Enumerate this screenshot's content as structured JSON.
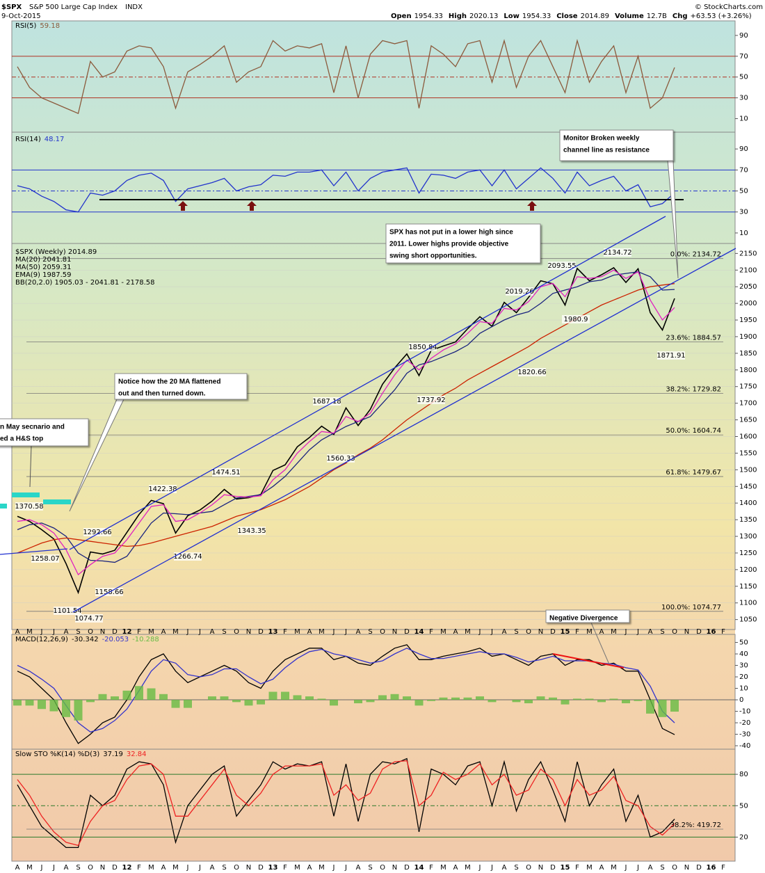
{
  "header": {
    "symbol": "$SPX",
    "name": "S&P 500 Large Cap Index",
    "exchange": "INDX",
    "date": "9-Oct-2015",
    "quote": [
      {
        "label": "Open",
        "value": "1954.33"
      },
      {
        "label": "High",
        "value": "2020.13"
      },
      {
        "label": "Low",
        "value": "1954.33"
      },
      {
        "label": "Close",
        "value": "2014.89"
      },
      {
        "label": "Volume",
        "value": "12.7B"
      },
      {
        "label": "Chg",
        "value": "+63.53 (+3.26%)"
      }
    ],
    "watermark": "© StockCharts.com"
  },
  "x_labels": [
    "A",
    "M",
    "J",
    "J",
    "A",
    "S",
    "O",
    "N",
    "D",
    "12",
    "F",
    "M",
    "A",
    "M",
    "J",
    "J",
    "A",
    "S",
    "O",
    "N",
    "D",
    "13",
    "F",
    "M",
    "A",
    "M",
    "J",
    "J",
    "A",
    "S",
    "O",
    "N",
    "D",
    "14",
    "F",
    "M",
    "A",
    "M",
    "J",
    "J",
    "A",
    "S",
    "O",
    "N",
    "D",
    "15",
    "F",
    "M",
    "A",
    "M",
    "J",
    "J",
    "A",
    "S",
    "O",
    "N",
    "D",
    "16",
    "F"
  ],
  "annotations": [
    {
      "lines": [
        "Monitor Broken weekly",
        "channel line as resistance"
      ]
    },
    {
      "lines": [
        "SPX has not put in a lower high since",
        "2011. Lower highs provide objective",
        "swing short opportunities."
      ]
    },
    {
      "lines": [
        "Notice how the 20 MA flattened",
        "out and then turned down."
      ]
    },
    {
      "lines": [
        "n May secnario and",
        "ed a H&S top"
      ]
    },
    {
      "lines": [
        "Negative Divergence"
      ]
    }
  ],
  "chart_data": [
    {
      "type": "line",
      "title": "RSI(5)",
      "ylim": [
        -3,
        104
      ],
      "yticks": [
        10,
        30,
        50,
        70,
        90
      ],
      "reference_lines": [
        30,
        50,
        70
      ],
      "series": [
        {
          "name": "59.18",
          "color": "#8b5a3c",
          "values": [
            60,
            40,
            30,
            25,
            20,
            15,
            65,
            50,
            55,
            75,
            80,
            78,
            60,
            20,
            55,
            62,
            70,
            80,
            45,
            55,
            60,
            85,
            75,
            80,
            78,
            82,
            35,
            80,
            30,
            72,
            85,
            82,
            85,
            20,
            80,
            72,
            60,
            82,
            85,
            45,
            85,
            40,
            70,
            85,
            60,
            35,
            85,
            45,
            65,
            80,
            35,
            70,
            20,
            30,
            59.18
          ]
        }
      ]
    },
    {
      "type": "line",
      "title": "RSI(14)",
      "ylim": [
        0,
        106
      ],
      "yticks": [
        10,
        30,
        50,
        70,
        90
      ],
      "reference_lines": [
        30,
        50,
        70
      ],
      "series": [
        {
          "name": "48.17",
          "color": "#2233cc",
          "values": [
            55,
            52,
            45,
            40,
            32,
            30,
            48,
            46,
            50,
            60,
            65,
            67,
            60,
            40,
            52,
            55,
            58,
            62,
            50,
            54,
            56,
            65,
            64,
            68,
            68,
            70,
            55,
            68,
            50,
            62,
            68,
            70,
            72,
            48,
            66,
            65,
            62,
            68,
            70,
            55,
            70,
            52,
            62,
            72,
            62,
            48,
            68,
            55,
            60,
            64,
            50,
            56,
            35,
            38,
            48.17
          ]
        }
      ]
    },
    {
      "type": "line",
      "ylim": [
        1020,
        2180
      ],
      "yticks": [
        1050,
        1100,
        1150,
        1200,
        1250,
        1300,
        1350,
        1400,
        1450,
        1500,
        1550,
        1600,
        1650,
        1700,
        1750,
        1800,
        1850,
        1900,
        1950,
        2000,
        2050,
        2100,
        2150
      ],
      "series": [
        {
          "name": "$SPX (Weekly) 2014.89",
          "color": "#000000",
          "values": [
            1360,
            1345,
            1320,
            1292,
            1218,
            1131,
            1253,
            1247,
            1258,
            1312,
            1366,
            1408,
            1398,
            1310,
            1362,
            1379,
            1406,
            1441,
            1412,
            1416,
            1426,
            1498,
            1515,
            1569,
            1597,
            1631,
            1606,
            1686,
            1633,
            1682,
            1757,
            1806,
            1848,
            1783,
            1859,
            1872,
            1884,
            1924,
            1960,
            1931,
            2003,
            1972,
            2018,
            2068,
            2059,
            1995,
            2105,
            2068,
            2086,
            2107,
            2063,
            2104,
            1972,
            1920,
            2014.89
          ]
        },
        {
          "name": "MA(20) 2041.81",
          "color": "#1a237e",
          "values": [
            1320,
            1335,
            1340,
            1325,
            1300,
            1250,
            1228,
            1226,
            1222,
            1240,
            1290,
            1340,
            1370,
            1368,
            1365,
            1370,
            1375,
            1395,
            1415,
            1420,
            1425,
            1450,
            1480,
            1520,
            1560,
            1590,
            1610,
            1630,
            1645,
            1660,
            1700,
            1740,
            1790,
            1815,
            1825,
            1840,
            1855,
            1875,
            1910,
            1930,
            1950,
            1965,
            1975,
            2000,
            2030,
            2040,
            2050,
            2065,
            2070,
            2085,
            2090,
            2095,
            2080,
            2040,
            2041.81
          ]
        },
        {
          "name": "MA(50) 2059.31",
          "color": "#cc2200",
          "values": [
            1250,
            1265,
            1280,
            1290,
            1295,
            1290,
            1285,
            1280,
            1275,
            1270,
            1272,
            1280,
            1290,
            1300,
            1310,
            1320,
            1330,
            1345,
            1360,
            1370,
            1380,
            1395,
            1410,
            1430,
            1450,
            1475,
            1500,
            1520,
            1545,
            1565,
            1590,
            1620,
            1650,
            1675,
            1700,
            1725,
            1745,
            1770,
            1790,
            1810,
            1830,
            1850,
            1870,
            1895,
            1915,
            1935,
            1955,
            1975,
            1995,
            2010,
            2025,
            2040,
            2050,
            2055,
            2059.31
          ]
        },
        {
          "name": "EMA(9) 1987.59",
          "color": "#e020c0",
          "values": [
            1345,
            1350,
            1335,
            1310,
            1260,
            1185,
            1215,
            1240,
            1250,
            1290,
            1340,
            1390,
            1395,
            1345,
            1350,
            1370,
            1395,
            1425,
            1420,
            1418,
            1422,
            1470,
            1500,
            1550,
            1585,
            1615,
            1610,
            1660,
            1645,
            1670,
            1730,
            1785,
            1830,
            1800,
            1835,
            1860,
            1878,
            1910,
            1945,
            1940,
            1985,
            1980,
            2005,
            2050,
            2060,
            2020,
            2080,
            2075,
            2080,
            2100,
            2075,
            2095,
            2010,
            1950,
            1987.59
          ]
        }
      ],
      "overlay_label": "BB(20,2.0) 1905.03 - 2041.81 - 2178.58",
      "fib_levels": [
        {
          "label": "0.0%: 2134.72",
          "value": 2134.72
        },
        {
          "label": "23.6%: 1884.57",
          "value": 1884.57
        },
        {
          "label": "38.2%: 1729.82",
          "value": 1729.82
        },
        {
          "label": "50.0%: 1604.74",
          "value": 1604.74
        },
        {
          "label": "61.8%: 1479.67",
          "value": 1479.67
        },
        {
          "label": "100.0%: 1074.77",
          "value": 1074.77
        }
      ],
      "price_labels": [
        1370.58,
        1258.07,
        1101.54,
        1074.77,
        1158.66,
        1292.66,
        1422.38,
        1266.74,
        1474.51,
        1343.35,
        1687.18,
        1560.33,
        1737.92,
        1850.84,
        2019.26,
        2093.55,
        1820.66,
        1980.9,
        2134.72,
        1871.91
      ]
    },
    {
      "type": "line",
      "title": "MACD(12,26,9)",
      "ylim": [
        -43,
        57
      ],
      "yticks": [
        50,
        40,
        30,
        20,
        10,
        0,
        -10,
        -20,
        -30,
        -40
      ],
      "reference_lines": [
        0
      ],
      "series": [
        {
          "name": "-30.342",
          "color": "#000000",
          "values": [
            25,
            20,
            10,
            0,
            -20,
            -38,
            -30,
            -20,
            -15,
            0,
            20,
            35,
            40,
            25,
            15,
            20,
            25,
            30,
            25,
            15,
            10,
            25,
            35,
            40,
            45,
            45,
            35,
            38,
            32,
            30,
            38,
            45,
            48,
            35,
            35,
            38,
            40,
            42,
            45,
            38,
            40,
            35,
            30,
            38,
            40,
            30,
            35,
            35,
            30,
            32,
            25,
            25,
            0,
            -25,
            -30.342
          ]
        },
        {
          "name": "-20.053",
          "color": "#3333cc",
          "values": [
            30,
            25,
            18,
            10,
            -5,
            -20,
            -28,
            -25,
            -18,
            -8,
            8,
            25,
            35,
            32,
            22,
            20,
            22,
            27,
            27,
            20,
            14,
            18,
            28,
            36,
            42,
            44,
            40,
            38,
            35,
            32,
            34,
            40,
            45,
            40,
            36,
            36,
            38,
            40,
            42,
            40,
            40,
            37,
            33,
            35,
            38,
            34,
            34,
            34,
            32,
            31,
            28,
            26,
            12,
            -10,
            -20.053
          ]
        },
        {
          "name": "-10.288",
          "color": "#66bb44",
          "type": "bar",
          "values": [
            -5,
            -5,
            -8,
            -10,
            -15,
            -18,
            -2,
            5,
            3,
            8,
            12,
            10,
            5,
            -7,
            -7,
            0,
            3,
            3,
            -2,
            -5,
            -4,
            7,
            7,
            4,
            3,
            1,
            -5,
            0,
            -3,
            -2,
            4,
            5,
            3,
            -5,
            -1,
            2,
            2,
            2,
            3,
            -2,
            0,
            -2,
            -3,
            3,
            2,
            -4,
            1,
            1,
            -2,
            1,
            -3,
            -1,
            -12,
            -15,
            -10.288
          ]
        }
      ]
    },
    {
      "type": "line",
      "title": "Slow STO %K(14) %D(3)",
      "ylim": [
        -3,
        104
      ],
      "yticks": [
        20,
        50,
        80
      ],
      "reference_lines": [
        20,
        50,
        80
      ],
      "overlay_label": "38.2%: 419.72",
      "series": [
        {
          "name": "37.19",
          "color": "#000000",
          "values": [
            70,
            50,
            30,
            20,
            10,
            10,
            60,
            50,
            60,
            85,
            92,
            90,
            70,
            15,
            50,
            65,
            80,
            88,
            40,
            55,
            70,
            92,
            85,
            90,
            88,
            92,
            40,
            90,
            35,
            80,
            92,
            90,
            95,
            25,
            85,
            80,
            70,
            88,
            92,
            50,
            92,
            45,
            75,
            92,
            65,
            35,
            92,
            50,
            70,
            85,
            35,
            60,
            20,
            25,
            37.19
          ]
        },
        {
          "name": "32.84",
          "color": "#ee2222",
          "values": [
            75,
            60,
            40,
            25,
            15,
            12,
            35,
            50,
            55,
            75,
            88,
            90,
            80,
            40,
            40,
            55,
            70,
            85,
            60,
            50,
            62,
            80,
            88,
            88,
            88,
            90,
            60,
            70,
            55,
            62,
            85,
            92,
            93,
            50,
            60,
            82,
            75,
            80,
            90,
            70,
            80,
            60,
            65,
            85,
            75,
            50,
            75,
            60,
            65,
            78,
            55,
            50,
            30,
            22,
            32.84
          ]
        }
      ]
    }
  ]
}
